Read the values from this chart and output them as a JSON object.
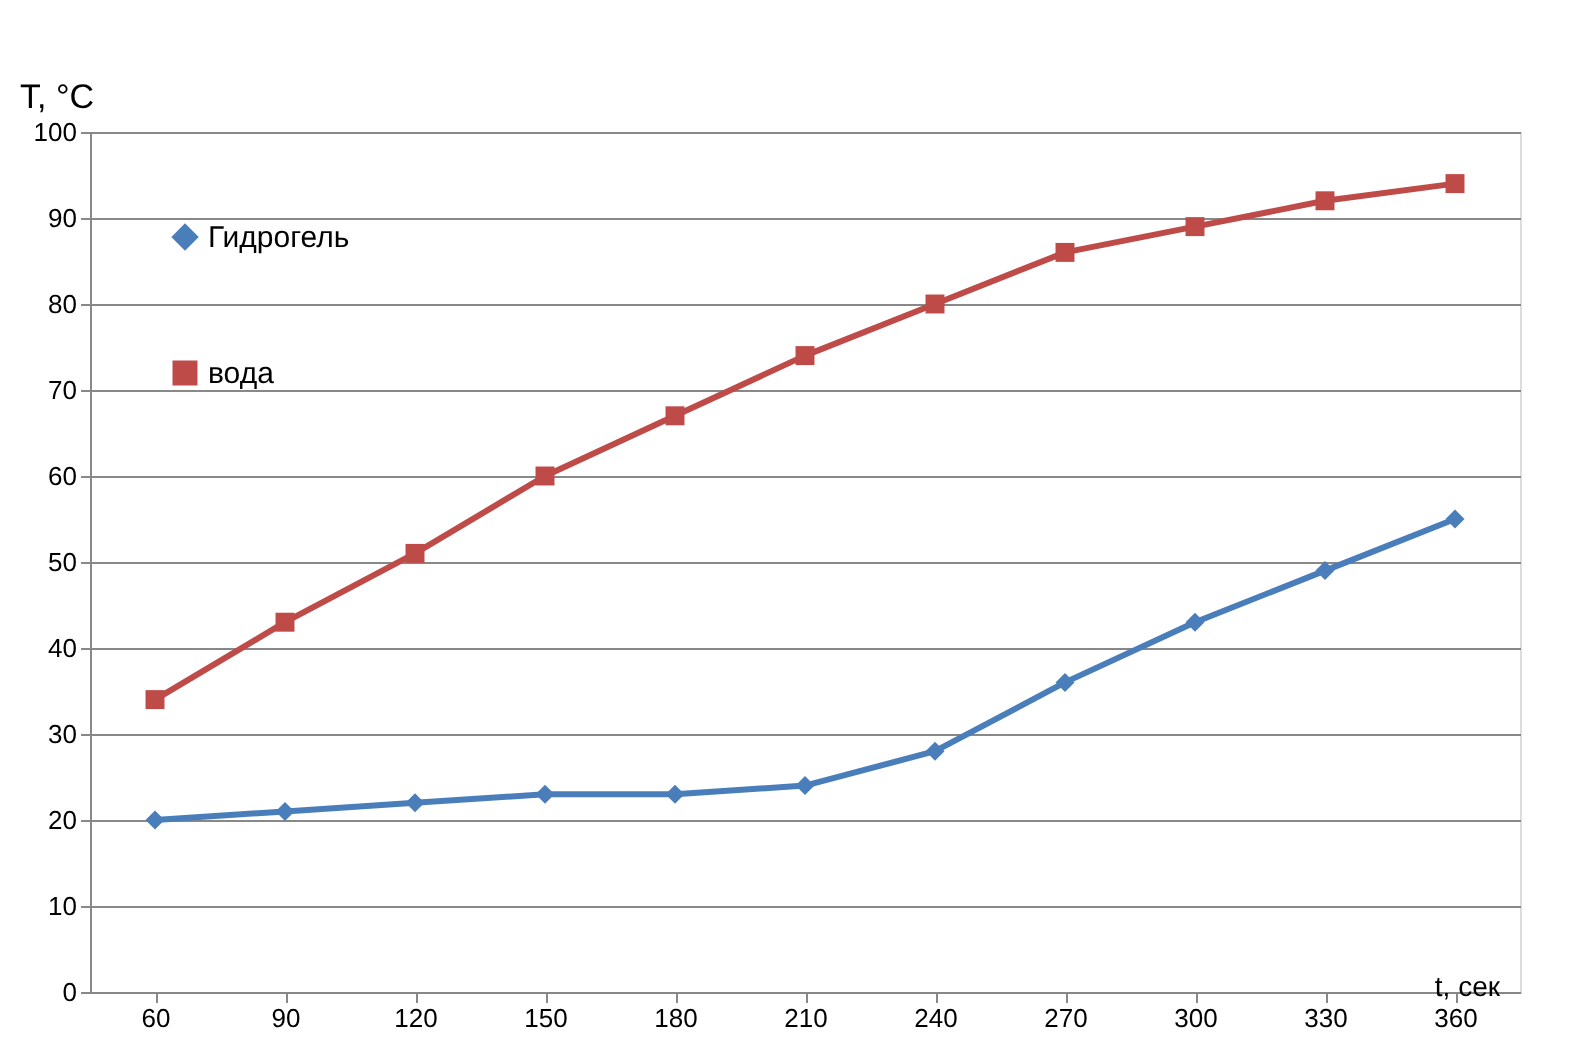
{
  "chart_data": {
    "type": "line",
    "xlabel": "t, сек",
    "ylabel": "T, °C",
    "categories": [
      "60",
      "90",
      "120",
      "150",
      "180",
      "210",
      "240",
      "270",
      "300",
      "330",
      "360"
    ],
    "series": [
      {
        "name": "Гидрогель",
        "color": "#4a7ebb",
        "marker": "diamond",
        "values": [
          20,
          21,
          22,
          23,
          23,
          24,
          28,
          36,
          43,
          49,
          55
        ]
      },
      {
        "name": "вода",
        "color": "#be4b48",
        "marker": "square",
        "values": [
          34,
          43,
          51,
          60,
          67,
          74,
          80,
          86,
          89,
          92,
          94
        ]
      }
    ],
    "ylim": [
      0,
      100
    ],
    "yticks": [
      0,
      10,
      20,
      30,
      40,
      50,
      60,
      70,
      80,
      90,
      100
    ],
    "grid": "y",
    "legend": "top left",
    "line_style": "solid"
  }
}
